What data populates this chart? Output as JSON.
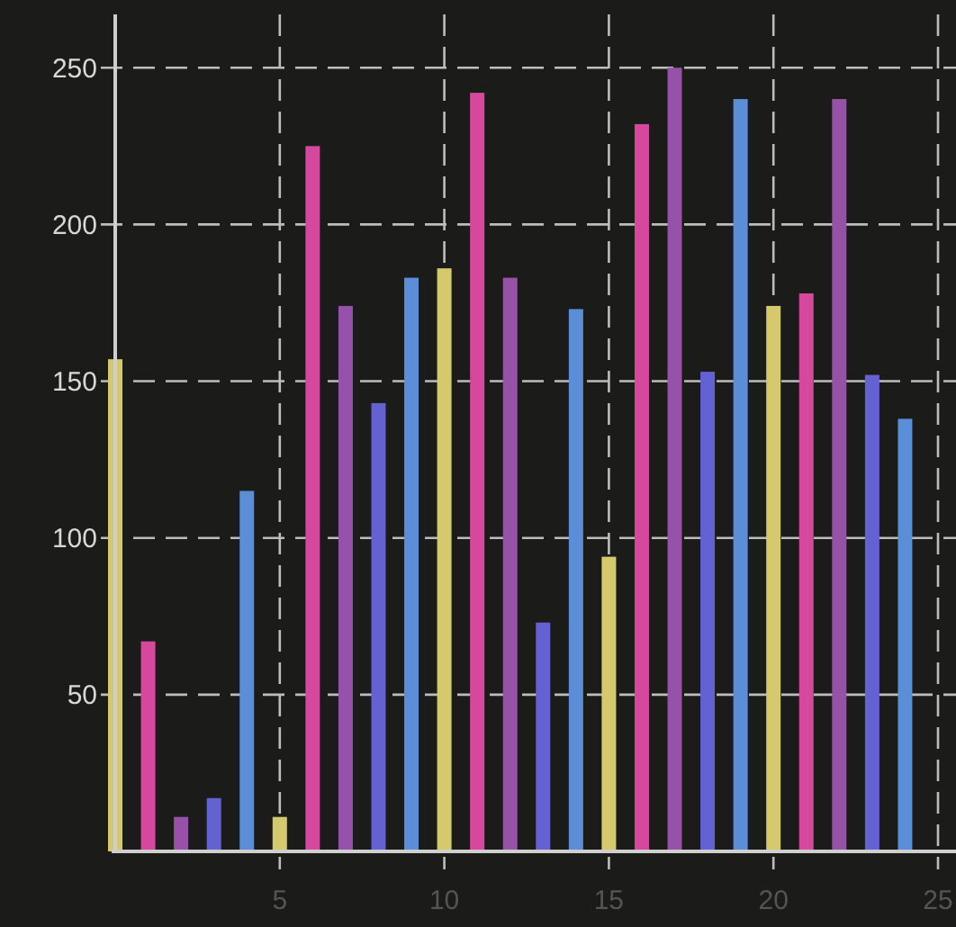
{
  "chart_data": {
    "type": "bar",
    "x": [
      0,
      1,
      2,
      3,
      4,
      5,
      6,
      7,
      8,
      9,
      10,
      11,
      12,
      13,
      14,
      15,
      16,
      17,
      18,
      19,
      20,
      21,
      22,
      23,
      24
    ],
    "values": [
      157,
      67,
      11,
      17,
      115,
      11,
      225,
      174,
      143,
      183,
      186,
      242,
      183,
      73,
      173,
      94,
      232,
      250,
      153,
      240,
      174,
      178,
      240,
      152,
      138
    ],
    "colors": [
      "#d4c96c",
      "#d6479e",
      "#9652a8",
      "#6461d3",
      "#5b8ed6",
      "#d4c96c",
      "#d6479e",
      "#9652a8",
      "#6461d3",
      "#5b8ed6",
      "#d4c96c",
      "#d6479e",
      "#9652a8",
      "#6461d3",
      "#5b8ed6",
      "#d4c96c",
      "#d6479e",
      "#9652a8",
      "#6461d3",
      "#5b8ed6",
      "#d4c96c",
      "#d6479e",
      "#9652a8",
      "#6461d3",
      "#5b8ed6"
    ],
    "xlim": [
      0,
      25
    ],
    "xticks": [
      5,
      10,
      15,
      20,
      25
    ],
    "ylim": [
      0,
      267
    ],
    "yticks": [
      50,
      100,
      150,
      200,
      250
    ],
    "grid": true
  }
}
